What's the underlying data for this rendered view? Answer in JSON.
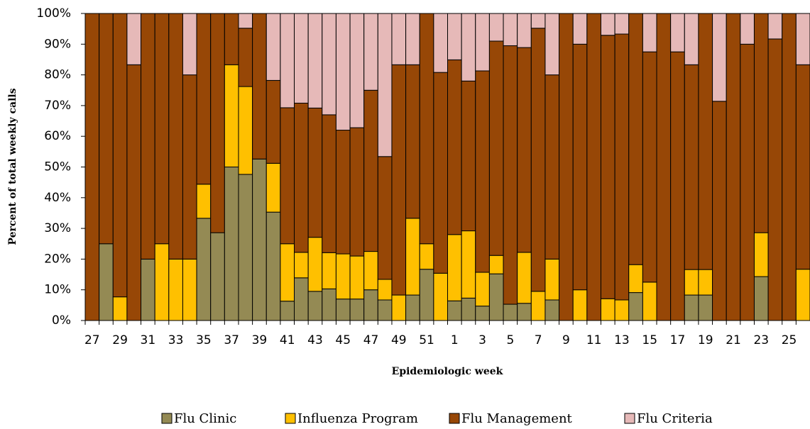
{
  "chart_data": {
    "type": "stacked_bar_100",
    "x_label": "Epidemiologic week",
    "y_label": "Percent of total weekly calls",
    "categories": [
      "27",
      null,
      "29",
      null,
      "31",
      null,
      "33",
      null,
      "35",
      null,
      "37",
      null,
      "39",
      null,
      "41",
      null,
      "43",
      null,
      "45",
      null,
      "47",
      null,
      "49",
      null,
      "51",
      null,
      "1",
      null,
      "3",
      null,
      "5",
      null,
      "7",
      null,
      "9",
      null,
      "11",
      null,
      "13",
      null,
      "15",
      null,
      "17",
      null,
      "19",
      null,
      "21",
      null,
      "23",
      null,
      "25",
      null
    ],
    "series": [
      {
        "name": "Flu Clinic",
        "color": "#948a54",
        "values": [
          0,
          25,
          0,
          0,
          20,
          0,
          0,
          0,
          33.3,
          28.6,
          50,
          47.6,
          52.6,
          35.3,
          6.3,
          13.9,
          9.5,
          10.3,
          7,
          7,
          10,
          6.7,
          0,
          8.3,
          16.7,
          0,
          6.4,
          7.3,
          4.7,
          15.2,
          5.3,
          5.6,
          0,
          6.7,
          0,
          0,
          0,
          0,
          0,
          9.1,
          0,
          0,
          0,
          8.3,
          8.3,
          0,
          0,
          0,
          14.3,
          0,
          0,
          0
        ]
      },
      {
        "name": "Influenza Program",
        "color": "#ffc000",
        "values": [
          0,
          0,
          7.7,
          0,
          0,
          25,
          20,
          20,
          11.1,
          0,
          33.3,
          28.6,
          0,
          15.9,
          18.7,
          8.3,
          17.6,
          11.8,
          14.7,
          14,
          12.5,
          6.7,
          8.3,
          25,
          8.3,
          15.4,
          21.6,
          21.9,
          11,
          6,
          0,
          16.6,
          9.5,
          13.3,
          0,
          10,
          0,
          7.1,
          6.7,
          9.1,
          12.5,
          0,
          0,
          8.3,
          8.3,
          0,
          0,
          0,
          14.3,
          0,
          0,
          16.7
        ]
      },
      {
        "name": "Flu Management",
        "color": "#974706",
        "values": [
          100,
          75,
          92.3,
          83.3,
          80,
          75,
          80,
          60,
          55.6,
          71.4,
          16.7,
          19,
          47.4,
          27,
          44.3,
          48.6,
          42.1,
          44.9,
          40.3,
          41.8,
          52.5,
          40,
          75,
          50,
          75,
          65.4,
          56.9,
          48.8,
          65.6,
          69.8,
          84.2,
          66.7,
          85.7,
          60,
          100,
          80,
          100,
          85.8,
          86.6,
          81.8,
          75,
          100,
          87.5,
          66.7,
          83.4,
          71.4,
          100,
          90,
          71.4,
          91.7,
          100,
          66.6
        ]
      },
      {
        "name": "Flu Criteria",
        "color": "#e6b9b8",
        "values": [
          0,
          0,
          0,
          16.7,
          0,
          0,
          0,
          20,
          0,
          0,
          0,
          4.8,
          0,
          21.8,
          30.7,
          29.2,
          30.8,
          33,
          38,
          37.2,
          25,
          46.6,
          16.7,
          16.7,
          0,
          19.2,
          15.1,
          22,
          18.7,
          9,
          10.5,
          11.1,
          4.8,
          20,
          0,
          10,
          0,
          7.1,
          6.7,
          0,
          12.5,
          0,
          12.5,
          16.7,
          0,
          28.6,
          0,
          10,
          0,
          8.3,
          0,
          16.7
        ]
      }
    ],
    "ylim": [
      0,
      100
    ],
    "yticks": [
      {
        "value": 0,
        "label": "0%"
      },
      {
        "value": 10,
        "label": "10%"
      },
      {
        "value": 20,
        "label": "20%"
      },
      {
        "value": 30,
        "label": "30%"
      },
      {
        "value": 40,
        "label": "40%"
      },
      {
        "value": 50,
        "label": "50%"
      },
      {
        "value": 60,
        "label": "60%"
      },
      {
        "value": 70,
        "label": "70%"
      },
      {
        "value": 80,
        "label": "80%"
      },
      {
        "value": 90,
        "label": "90%"
      },
      {
        "value": 100,
        "label": "100%"
      }
    ],
    "legend": "bottom"
  }
}
